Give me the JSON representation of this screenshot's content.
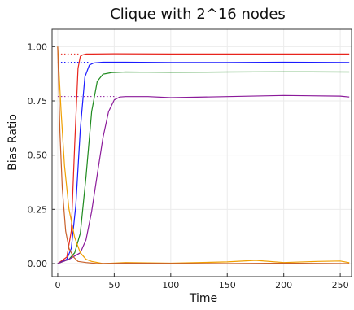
{
  "chart_data": {
    "type": "line",
    "title": "Clique with 2^16 nodes",
    "xlabel": "Time",
    "ylabel": "Bias Ratio",
    "xlim": [
      -5,
      260
    ],
    "ylim": [
      -0.06,
      1.08
    ],
    "xticks": [
      0,
      50,
      100,
      150,
      200,
      250
    ],
    "yticks": [
      0.0,
      0.25,
      0.5,
      0.75,
      1.0
    ],
    "xtick_labels": [
      "0",
      "50",
      "100",
      "150",
      "200",
      "250"
    ],
    "ytick_labels": [
      "0.00",
      "0.25",
      "0.50",
      "0.75",
      "1.00"
    ],
    "grid": true,
    "legend": "none",
    "colors": {
      "red": "#e8241c",
      "blue": "#1a1aff",
      "green": "#1e8a1e",
      "purple": "#8b1a9a",
      "orange": "#f0a000",
      "brown": "#c8602a"
    },
    "reference_lines": [
      {
        "y": 0.966,
        "x_range": [
          0,
          20
        ],
        "color": "red"
      },
      {
        "y": 0.928,
        "x_range": [
          0,
          28
        ],
        "color": "blue"
      },
      {
        "y": 0.883,
        "x_range": [
          0,
          38
        ],
        "color": "green"
      },
      {
        "y": 0.77,
        "x_range": [
          0,
          52
        ],
        "color": "purple"
      }
    ],
    "series": [
      {
        "color": "red",
        "x": [
          0,
          8,
          12,
          15,
          18,
          20,
          22,
          25,
          30,
          50,
          100,
          150,
          200,
          258
        ],
        "y": [
          0.0,
          0.03,
          0.15,
          0.55,
          0.9,
          0.955,
          0.962,
          0.966,
          0.966,
          0.967,
          0.966,
          0.966,
          0.966,
          0.966
        ]
      },
      {
        "color": "blue",
        "x": [
          0,
          8,
          12,
          16,
          20,
          24,
          28,
          32,
          40,
          60,
          100,
          150,
          200,
          258
        ],
        "y": [
          0.0,
          0.02,
          0.07,
          0.27,
          0.62,
          0.86,
          0.915,
          0.925,
          0.928,
          0.928,
          0.927,
          0.927,
          0.928,
          0.927
        ]
      },
      {
        "color": "green",
        "x": [
          0,
          10,
          15,
          20,
          25,
          30,
          35,
          40,
          48,
          60,
          100,
          150,
          200,
          258
        ],
        "y": [
          0.0,
          0.02,
          0.05,
          0.14,
          0.4,
          0.7,
          0.84,
          0.873,
          0.881,
          0.883,
          0.882,
          0.883,
          0.884,
          0.883
        ]
      },
      {
        "color": "purple",
        "x": [
          0,
          10,
          20,
          25,
          30,
          35,
          40,
          45,
          50,
          55,
          60,
          80,
          100,
          150,
          200,
          250,
          258
        ],
        "y": [
          0.0,
          0.02,
          0.05,
          0.11,
          0.24,
          0.41,
          0.58,
          0.7,
          0.755,
          0.768,
          0.77,
          0.77,
          0.765,
          0.77,
          0.775,
          0.772,
          0.768
        ]
      },
      {
        "color": "orange",
        "x": [
          0,
          3,
          6,
          10,
          15,
          20,
          25,
          30,
          40,
          60,
          100,
          150,
          175,
          200,
          230,
          250,
          258
        ],
        "y": [
          1.0,
          0.7,
          0.45,
          0.25,
          0.12,
          0.05,
          0.02,
          0.01,
          0.0,
          0.005,
          0.002,
          0.008,
          0.015,
          0.005,
          0.01,
          0.012,
          0.004
        ]
      },
      {
        "color": "brown",
        "x": [
          0,
          2,
          4,
          7,
          10,
          14,
          18,
          25,
          35,
          60,
          100,
          150,
          200,
          258
        ],
        "y": [
          1.0,
          0.6,
          0.35,
          0.15,
          0.07,
          0.03,
          0.01,
          0.005,
          0.0,
          0.002,
          0.001,
          0.0,
          0.002,
          0.0
        ]
      }
    ]
  }
}
